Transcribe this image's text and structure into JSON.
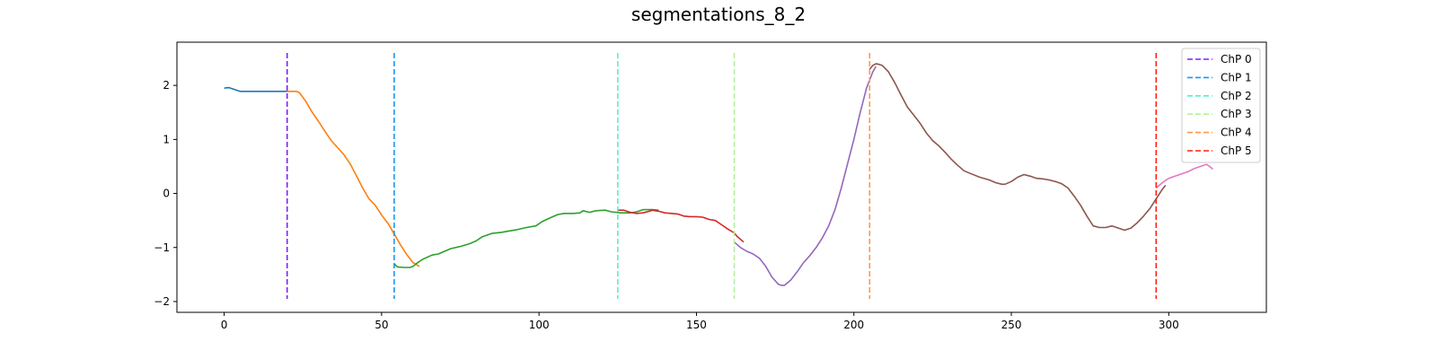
{
  "chart_data": {
    "type": "line",
    "title": "segmentations_8_2",
    "xlabel": "",
    "ylabel": "",
    "xlim": [
      -15,
      331
    ],
    "ylim": [
      -2.2,
      2.8
    ],
    "xticks": [
      0,
      50,
      100,
      150,
      200,
      250,
      300
    ],
    "yticks": [
      -2,
      -1,
      0,
      1,
      2
    ],
    "grid": false,
    "legend_position": "top-right",
    "segments": [
      {
        "color": "#1f77b4",
        "points": [
          [
            0,
            1.95
          ],
          [
            1.5,
            1.96
          ],
          [
            3,
            1.93
          ],
          [
            5,
            1.89
          ],
          [
            8,
            1.89
          ],
          [
            12,
            1.89
          ],
          [
            16,
            1.89
          ],
          [
            20,
            1.89
          ]
        ]
      },
      {
        "color": "#ff7f0e",
        "points": [
          [
            20,
            1.89
          ],
          [
            23,
            1.89
          ],
          [
            24,
            1.86
          ],
          [
            26,
            1.7
          ],
          [
            28,
            1.5
          ],
          [
            30,
            1.33
          ],
          [
            32,
            1.15
          ],
          [
            34,
            0.98
          ],
          [
            36,
            0.85
          ],
          [
            38,
            0.72
          ],
          [
            40,
            0.55
          ],
          [
            42,
            0.33
          ],
          [
            44,
            0.1
          ],
          [
            46,
            -0.1
          ],
          [
            48,
            -0.22
          ],
          [
            50,
            -0.4
          ],
          [
            52,
            -0.55
          ],
          [
            54,
            -0.75
          ],
          [
            56,
            -0.95
          ],
          [
            58,
            -1.13
          ],
          [
            60,
            -1.28
          ],
          [
            62,
            -1.35
          ]
        ]
      },
      {
        "color": "#2ca02c",
        "points": [
          [
            54,
            -1.3
          ],
          [
            55,
            -1.36
          ],
          [
            57,
            -1.37
          ],
          [
            59,
            -1.37
          ],
          [
            60,
            -1.35
          ],
          [
            61,
            -1.3
          ],
          [
            63,
            -1.22
          ],
          [
            66,
            -1.14
          ],
          [
            68,
            -1.12
          ],
          [
            70,
            -1.07
          ],
          [
            72,
            -1.02
          ],
          [
            75,
            -0.98
          ],
          [
            78,
            -0.93
          ],
          [
            80,
            -0.88
          ],
          [
            82,
            -0.8
          ],
          [
            85,
            -0.74
          ],
          [
            88,
            -0.72
          ],
          [
            90,
            -0.7
          ],
          [
            93,
            -0.67
          ],
          [
            96,
            -0.63
          ],
          [
            99,
            -0.6
          ],
          [
            101,
            -0.52
          ],
          [
            104,
            -0.44
          ],
          [
            106,
            -0.39
          ],
          [
            108,
            -0.37
          ],
          [
            111,
            -0.37
          ],
          [
            113,
            -0.36
          ],
          [
            114,
            -0.32
          ],
          [
            116,
            -0.35
          ],
          [
            118,
            -0.32
          ],
          [
            121,
            -0.31
          ],
          [
            123,
            -0.34
          ],
          [
            126,
            -0.36
          ],
          [
            129,
            -0.36
          ],
          [
            131,
            -0.34
          ],
          [
            133,
            -0.3
          ],
          [
            136,
            -0.3
          ],
          [
            138,
            -0.31
          ]
        ]
      },
      {
        "color": "#d62728",
        "points": [
          [
            125,
            -0.31
          ],
          [
            127,
            -0.31
          ],
          [
            129,
            -0.35
          ],
          [
            131,
            -0.37
          ],
          [
            133,
            -0.36
          ],
          [
            135,
            -0.33
          ],
          [
            136,
            -0.31
          ],
          [
            138,
            -0.33
          ],
          [
            140,
            -0.36
          ],
          [
            142,
            -0.37
          ],
          [
            144,
            -0.38
          ],
          [
            146,
            -0.42
          ],
          [
            148,
            -0.43
          ],
          [
            150,
            -0.43
          ],
          [
            152,
            -0.44
          ],
          [
            154,
            -0.48
          ],
          [
            156,
            -0.5
          ],
          [
            158,
            -0.58
          ],
          [
            160,
            -0.66
          ],
          [
            162,
            -0.73
          ],
          [
            163,
            -0.8
          ],
          [
            165,
            -0.9
          ]
        ]
      },
      {
        "color": "#9467bd",
        "points": [
          [
            162,
            -0.9
          ],
          [
            164,
            -1.0
          ],
          [
            166,
            -1.07
          ],
          [
            168,
            -1.12
          ],
          [
            170,
            -1.2
          ],
          [
            172,
            -1.35
          ],
          [
            174,
            -1.55
          ],
          [
            176,
            -1.68
          ],
          [
            177,
            -1.7
          ],
          [
            178,
            -1.7
          ],
          [
            180,
            -1.6
          ],
          [
            182,
            -1.45
          ],
          [
            184,
            -1.28
          ],
          [
            186,
            -1.15
          ],
          [
            188,
            -1.0
          ],
          [
            190,
            -0.82
          ],
          [
            192,
            -0.6
          ],
          [
            194,
            -0.3
          ],
          [
            196,
            0.1
          ],
          [
            198,
            0.55
          ],
          [
            200,
            1.0
          ],
          [
            202,
            1.5
          ],
          [
            204,
            1.95
          ],
          [
            205,
            2.1
          ],
          [
            206,
            2.25
          ],
          [
            207,
            2.35
          ]
        ]
      },
      {
        "color": "#8c564b",
        "points": [
          [
            205,
            2.3
          ],
          [
            206,
            2.37
          ],
          [
            207,
            2.4
          ],
          [
            208,
            2.39
          ],
          [
            209,
            2.37
          ],
          [
            211,
            2.25
          ],
          [
            213,
            2.05
          ],
          [
            215,
            1.82
          ],
          [
            217,
            1.6
          ],
          [
            219,
            1.45
          ],
          [
            221,
            1.3
          ],
          [
            223,
            1.12
          ],
          [
            225,
            0.98
          ],
          [
            227,
            0.88
          ],
          [
            229,
            0.76
          ],
          [
            231,
            0.63
          ],
          [
            233,
            0.52
          ],
          [
            235,
            0.42
          ],
          [
            237,
            0.37
          ],
          [
            240,
            0.3
          ],
          [
            243,
            0.25
          ],
          [
            245,
            0.2
          ],
          [
            247,
            0.17
          ],
          [
            248,
            0.17
          ],
          [
            250,
            0.22
          ],
          [
            252,
            0.3
          ],
          [
            254,
            0.35
          ],
          [
            256,
            0.32
          ],
          [
            258,
            0.28
          ],
          [
            260,
            0.27
          ],
          [
            262,
            0.25
          ],
          [
            264,
            0.22
          ],
          [
            266,
            0.18
          ],
          [
            268,
            0.1
          ],
          [
            270,
            -0.05
          ],
          [
            272,
            -0.22
          ],
          [
            274,
            -0.42
          ],
          [
            276,
            -0.6
          ],
          [
            278,
            -0.63
          ],
          [
            280,
            -0.63
          ],
          [
            282,
            -0.6
          ],
          [
            284,
            -0.64
          ],
          [
            286,
            -0.68
          ],
          [
            288,
            -0.64
          ],
          [
            290,
            -0.54
          ],
          [
            292,
            -0.42
          ],
          [
            294,
            -0.28
          ],
          [
            296,
            -0.1
          ],
          [
            298,
            0.08
          ],
          [
            299,
            0.15
          ]
        ]
      },
      {
        "color": "#e377c2",
        "points": [
          [
            296,
            0.1
          ],
          [
            298,
            0.2
          ],
          [
            300,
            0.28
          ],
          [
            302,
            0.32
          ],
          [
            304,
            0.36
          ],
          [
            306,
            0.4
          ],
          [
            308,
            0.46
          ],
          [
            310,
            0.5
          ],
          [
            312,
            0.54
          ],
          [
            313,
            0.5
          ],
          [
            314,
            0.45
          ]
        ]
      }
    ],
    "changepoints": [
      {
        "name": "ChP 0",
        "x": 20,
        "color": "#7f1fff"
      },
      {
        "name": "ChP 1",
        "x": 54,
        "color": "#1996f3"
      },
      {
        "name": "ChP 2",
        "x": 125,
        "color": "#4df3ce"
      },
      {
        "name": "ChP 3",
        "x": 162,
        "color": "#b2f396"
      },
      {
        "name": "ChP 4",
        "x": 205,
        "color": "#ff964f"
      },
      {
        "name": "ChP 5",
        "x": 296,
        "color": "#ff1f10"
      }
    ],
    "changepoint_range": [
      -1.95,
      2.6
    ]
  }
}
